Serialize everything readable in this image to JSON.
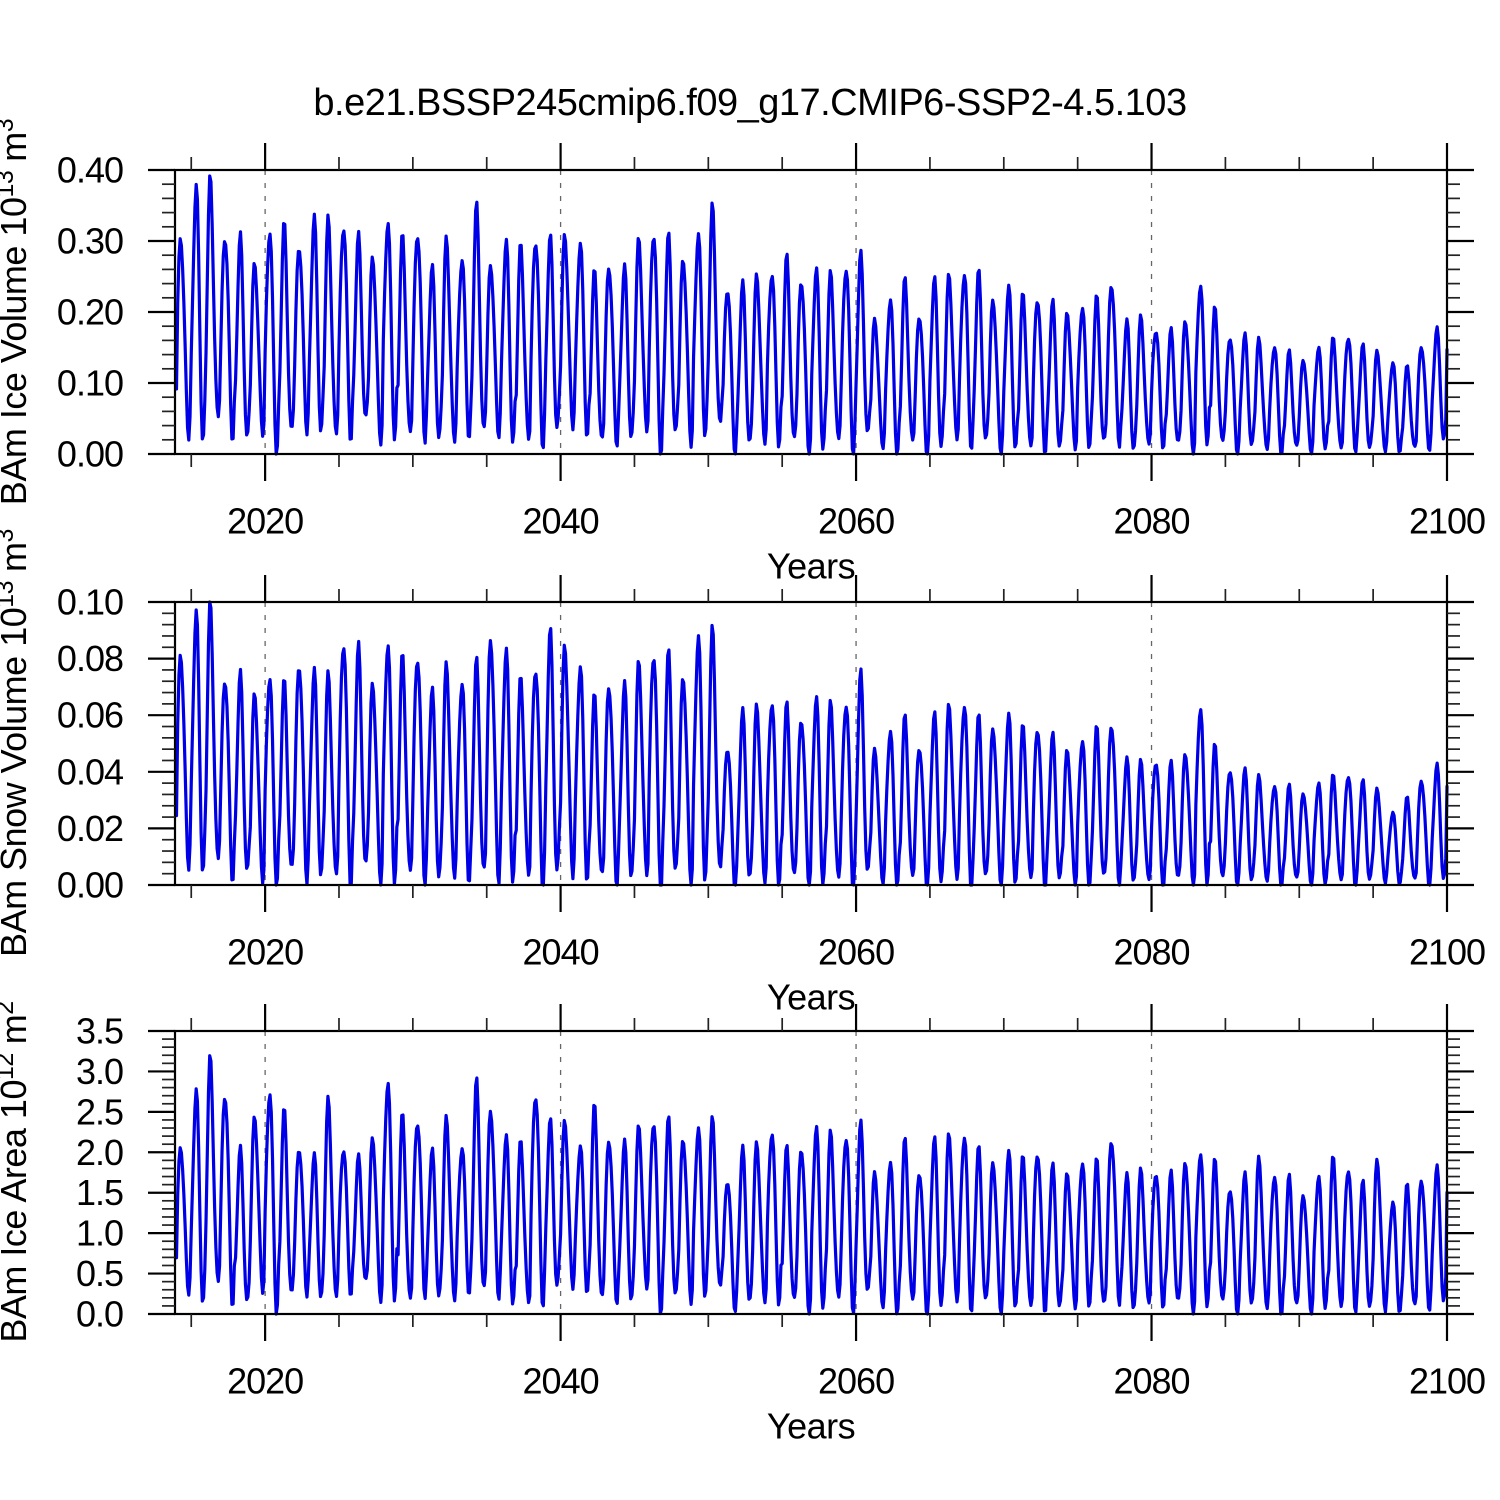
{
  "title": "b.e21.BSSP245cmip6.f09_g17.CMIP6-SSP2-4.5.103",
  "style": {
    "line_color": "#0000E6",
    "grid_color": "#666666",
    "axis_color": "#000000",
    "background": "#FFFFFF"
  },
  "chart_data": [
    {
      "id": "ice-volume",
      "type": "line",
      "ylabel_base": "BAm Ice Volume 10",
      "ylabel_exp": "13",
      "ylabel_unit": "m",
      "ylabel_unit_exp": "3",
      "xlabel": "Years",
      "xlim": [
        2013.9,
        2100
      ],
      "ylim": [
        0,
        0.4
      ],
      "xticks": {
        "values": [
          2020,
          2040,
          2060,
          2080,
          2100
        ],
        "labels": [
          "2020",
          "2040",
          "2060",
          "2080",
          "2100"
        ],
        "minor_step": 5
      },
      "yticks": {
        "values": [
          0,
          0.1,
          0.2,
          0.3,
          0.4
        ],
        "labels": [
          "0.00",
          "0.10",
          "0.20",
          "0.30",
          "0.40"
        ],
        "minor_step": 0.02
      },
      "grid_years": [
        2020,
        2040,
        2060,
        2080
      ],
      "legend": "none",
      "series": {
        "name": "BAm Ice Volume",
        "units": "10^13 m^3",
        "sampling": "monthly",
        "start_year": 2014,
        "annual_max": [
          0.31,
          0.375,
          0.38,
          0.315,
          0.3,
          0.27,
          0.32,
          0.315,
          0.3,
          0.33,
          0.325,
          0.33,
          0.3,
          0.28,
          0.33,
          0.3,
          0.32,
          0.26,
          0.3,
          0.28,
          0.34,
          0.27,
          0.3,
          0.29,
          0.31,
          0.3,
          0.31,
          0.3,
          0.25,
          0.27,
          0.26,
          0.3,
          0.32,
          0.3,
          0.28,
          0.31,
          0.34,
          0.24,
          0.235,
          0.25,
          0.26,
          0.27,
          0.25,
          0.26,
          0.25,
          0.27,
          0.275,
          0.19,
          0.22,
          0.24,
          0.2,
          0.245,
          0.25,
          0.26,
          0.25,
          0.22,
          0.235,
          0.22,
          0.225,
          0.21,
          0.2,
          0.21,
          0.215,
          0.245,
          0.185,
          0.19,
          0.18,
          0.17,
          0.19,
          0.24,
          0.2,
          0.17,
          0.165,
          0.16,
          0.155,
          0.14,
          0.135,
          0.15,
          0.16,
          0.17,
          0.15,
          0.145,
          0.13,
          0.12,
          0.155,
          0.175
        ],
        "annual_min": [
          0.03,
          0.02,
          0.04,
          0.03,
          0.015,
          0.03,
          0.01,
          0.02,
          0.04,
          0.03,
          0.02,
          0.03,
          0.04,
          0.02,
          0.03,
          0.02,
          0.03,
          0.02,
          0.015,
          0.03,
          0.02,
          0.03,
          0.02,
          0.015,
          0.02,
          0.03,
          0.04,
          0.03,
          0.01,
          0.02,
          0.02,
          0.03,
          0.01,
          0.02,
          0.02,
          0.03,
          0.03,
          0.01,
          0.01,
          0.015,
          0.02,
          0.01,
          0.005,
          0.01,
          0.015,
          0.01,
          0.02,
          0.01,
          0.005,
          0.01,
          0.005,
          0.01,
          0.02,
          0.015,
          0.01,
          0.005,
          0.01,
          0.005,
          0.01,
          0.005,
          0.01,
          0.015,
          0.01,
          0.02,
          0.005,
          0.01,
          0.015,
          0.01,
          0.005,
          0.02,
          0.01,
          0.005,
          0.01,
          0.005,
          0.005,
          0.005,
          0.005,
          0.01,
          0.005,
          0.01,
          0.005,
          0.005,
          0.005,
          0.005,
          0.01,
          0.02
        ]
      }
    },
    {
      "id": "snow-volume",
      "type": "line",
      "ylabel_base": "BAm Snow Volume 10",
      "ylabel_exp": "13",
      "ylabel_unit": "m",
      "ylabel_unit_exp": "3",
      "xlabel": "Years",
      "xlim": [
        2013.9,
        2100
      ],
      "ylim": [
        0,
        0.1
      ],
      "xticks": {
        "values": [
          2020,
          2040,
          2060,
          2080,
          2100
        ],
        "labels": [
          "2020",
          "2040",
          "2060",
          "2080",
          "2100"
        ],
        "minor_step": 5
      },
      "yticks": {
        "values": [
          0,
          0.02,
          0.04,
          0.06,
          0.08,
          0.1
        ],
        "labels": [
          "0.00",
          "0.02",
          "0.04",
          "0.06",
          "0.08",
          "0.10"
        ],
        "minor_step": 0.004
      },
      "grid_years": [
        2020,
        2040,
        2060,
        2080
      ],
      "legend": "none",
      "series": {
        "name": "BAm Snow Volume",
        "units": "10^13 m^3",
        "sampling": "monthly",
        "start_year": 2014,
        "annual_max": [
          0.083,
          0.096,
          0.097,
          0.075,
          0.073,
          0.068,
          0.075,
          0.07,
          0.08,
          0.075,
          0.073,
          0.088,
          0.082,
          0.072,
          0.086,
          0.079,
          0.083,
          0.068,
          0.077,
          0.073,
          0.077,
          0.088,
          0.083,
          0.072,
          0.079,
          0.088,
          0.085,
          0.078,
          0.065,
          0.072,
          0.07,
          0.078,
          0.084,
          0.08,
          0.075,
          0.088,
          0.088,
          0.05,
          0.06,
          0.063,
          0.066,
          0.062,
          0.06,
          0.066,
          0.063,
          0.066,
          0.073,
          0.048,
          0.055,
          0.058,
          0.05,
          0.06,
          0.063,
          0.065,
          0.058,
          0.056,
          0.06,
          0.055,
          0.057,
          0.052,
          0.048,
          0.052,
          0.054,
          0.058,
          0.044,
          0.043,
          0.045,
          0.042,
          0.047,
          0.063,
          0.048,
          0.042,
          0.04,
          0.038,
          0.036,
          0.034,
          0.033,
          0.036,
          0.038,
          0.04,
          0.036,
          0.034,
          0.026,
          0.03,
          0.038,
          0.042
        ],
        "annual_min": [
          0.008,
          0.005,
          0.006,
          0.004,
          0.003,
          0.002,
          0.002,
          0.003,
          0.004,
          0.003,
          0.002,
          0.003,
          0.004,
          0.002,
          0.003,
          0.002,
          0.003,
          0.002,
          0.002,
          0.003,
          0.002,
          0.003,
          0.002,
          0.002,
          0.002,
          0.003,
          0.004,
          0.003,
          0.001,
          0.002,
          0.002,
          0.003,
          0.001,
          0.002,
          0.002,
          0.003,
          0.002,
          0.001,
          0.001,
          0.001,
          0.002,
          0.001,
          0.001,
          0.001,
          0.001,
          0.001,
          0.002,
          0.001,
          0.001,
          0.001,
          0.001,
          0.001,
          0.002,
          0.001,
          0.001,
          0.001,
          0.001,
          0.001,
          0.001,
          0.001,
          0.001,
          0.001,
          0.001,
          0.002,
          0.001,
          0.001,
          0.001,
          0.001,
          0.001,
          0.002,
          0.001,
          0.001,
          0.001,
          0.001,
          0.001,
          0.001,
          0.001,
          0.001,
          0.001,
          0.001,
          0.001,
          0.001,
          0.001,
          0.001,
          0.001,
          0.002
        ]
      }
    },
    {
      "id": "ice-area",
      "type": "line",
      "ylabel_base": "BAm Ice Area 10",
      "ylabel_exp": "12",
      "ylabel_unit": "m",
      "ylabel_unit_exp": "2",
      "xlabel": "Years",
      "xlim": [
        2013.9,
        2100
      ],
      "ylim": [
        0,
        3.5
      ],
      "xticks": {
        "values": [
          2020,
          2040,
          2060,
          2080,
          2100
        ],
        "labels": [
          "2020",
          "2040",
          "2060",
          "2080",
          "2100"
        ],
        "minor_step": 5
      },
      "yticks": {
        "values": [
          0,
          0.5,
          1.0,
          1.5,
          2.0,
          2.5,
          3.0,
          3.5
        ],
        "labels": [
          "0.0",
          "0.5",
          "1.0",
          "1.5",
          "2.0",
          "2.5",
          "3.0",
          "3.5"
        ],
        "minor_step": 0.1
      },
      "grid_years": [
        2020,
        2040,
        2060,
        2080
      ],
      "legend": "none",
      "series": {
        "name": "BAm Ice Area",
        "units": "10^12 m^2",
        "sampling": "monthly",
        "start_year": 2014,
        "annual_max": [
          2.1,
          2.75,
          3.1,
          2.8,
          2.0,
          2.45,
          2.8,
          2.45,
          2.1,
          1.95,
          2.6,
          2.1,
          1.9,
          2.2,
          2.9,
          2.4,
          2.45,
          2.0,
          2.4,
          2.1,
          2.8,
          2.55,
          2.2,
          2.1,
          2.8,
          2.35,
          2.4,
          2.1,
          2.5,
          2.2,
          2.1,
          2.3,
          2.45,
          2.35,
          2.2,
          2.3,
          2.35,
          1.7,
          2.0,
          2.1,
          2.3,
          2.0,
          2.1,
          2.3,
          2.2,
          2.25,
          2.3,
          1.75,
          1.9,
          2.1,
          1.8,
          2.15,
          2.2,
          2.25,
          2.0,
          1.9,
          2.0,
          1.9,
          2.05,
          1.8,
          1.75,
          1.9,
          1.85,
          2.2,
          1.7,
          1.75,
          1.8,
          1.7,
          1.9,
          2.0,
          1.85,
          1.6,
          1.7,
          1.9,
          1.75,
          1.65,
          1.5,
          1.7,
          1.9,
          1.85,
          1.6,
          1.9,
          1.4,
          1.55,
          1.7,
          1.8
        ],
        "annual_min": [
          0.3,
          0.15,
          0.3,
          0.2,
          0.1,
          0.3,
          0.1,
          0.15,
          0.3,
          0.2,
          0.15,
          0.3,
          0.35,
          0.2,
          0.25,
          0.1,
          0.3,
          0.2,
          0.15,
          0.3,
          0.2,
          0.25,
          0.15,
          0.1,
          0.2,
          0.3,
          0.35,
          0.3,
          0.1,
          0.2,
          0.15,
          0.3,
          0.1,
          0.15,
          0.2,
          0.25,
          0.25,
          0.1,
          0.1,
          0.15,
          0.2,
          0.1,
          0.05,
          0.1,
          0.15,
          0.1,
          0.2,
          0.1,
          0.05,
          0.1,
          0.05,
          0.1,
          0.15,
          0.1,
          0.1,
          0.05,
          0.1,
          0.05,
          0.1,
          0.05,
          0.1,
          0.15,
          0.05,
          0.2,
          0.05,
          0.1,
          0.15,
          0.1,
          0.05,
          0.15,
          0.1,
          0.05,
          0.1,
          0.05,
          0.05,
          0.05,
          0.05,
          0.1,
          0.05,
          0.1,
          0.05,
          0.05,
          0.05,
          0.05,
          0.1,
          0.15
        ]
      }
    }
  ]
}
